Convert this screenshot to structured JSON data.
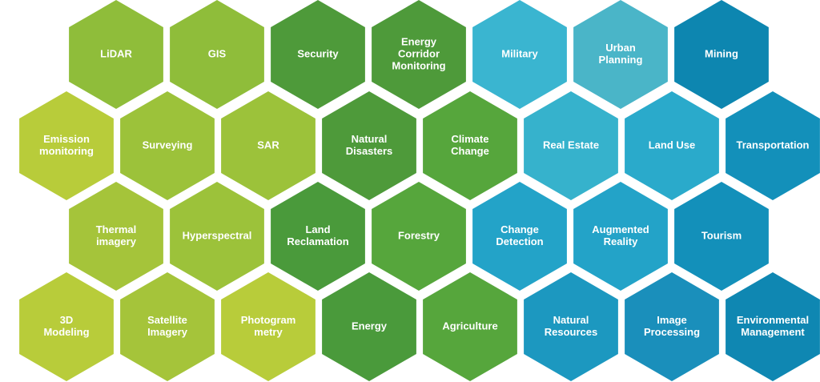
{
  "rows": [
    [
      {
        "lines": [
          "LiDAR"
        ],
        "color": "#8fbd3a"
      },
      {
        "lines": [
          "GIS"
        ],
        "color": "#8fbd3a"
      },
      {
        "lines": [
          "Security"
        ],
        "color": "#4e9a3a"
      },
      {
        "lines": [
          "Energy",
          "Corridor",
          "Monitoring"
        ],
        "color": "#4e9a3a"
      },
      {
        "lines": [
          "Military"
        ],
        "color": "#3ab5d0"
      },
      {
        "lines": [
          "Urban",
          "Planning"
        ],
        "color": "#4ab5c8"
      },
      {
        "lines": [
          "Mining"
        ],
        "color": "#0d86b0"
      }
    ],
    [
      {
        "lines": [
          "Emission",
          "monitoring"
        ],
        "color": "#b8cc3a"
      },
      {
        "lines": [
          "Surveying"
        ],
        "color": "#9cc23a"
      },
      {
        "lines": [
          "SAR"
        ],
        "color": "#9cc23a"
      },
      {
        "lines": [
          "Natural",
          "Disasters"
        ],
        "color": "#4e9a3a"
      },
      {
        "lines": [
          "Climate",
          "Change"
        ],
        "color": "#56a63c"
      },
      {
        "lines": [
          "Real Estate"
        ],
        "color": "#36b2cc"
      },
      {
        "lines": [
          "Land Use"
        ],
        "color": "#2aaacb"
      },
      {
        "lines": [
          "Transportation"
        ],
        "color": "#1390ba"
      }
    ],
    [
      {
        "lines": [
          "Thermal",
          "imagery"
        ],
        "color": "#a5c43a"
      },
      {
        "lines": [
          "Hyperspectral"
        ],
        "color": "#9cc23a"
      },
      {
        "lines": [
          "Land",
          "Reclamation"
        ],
        "color": "#4a9a3b"
      },
      {
        "lines": [
          "Forestry"
        ],
        "color": "#56a63c"
      },
      {
        "lines": [
          "Change",
          "Detection"
        ],
        "color": "#23a3c8"
      },
      {
        "lines": [
          "Augmented",
          "Reality"
        ],
        "color": "#23a3c8"
      },
      {
        "lines": [
          "Tourism"
        ],
        "color": "#1390ba"
      }
    ],
    [
      {
        "lines": [
          "3D",
          "Modeling"
        ],
        "color": "#b8cc3a"
      },
      {
        "lines": [
          "Satellite",
          "Imagery"
        ],
        "color": "#a5c43a"
      },
      {
        "lines": [
          "Photogram",
          "metry"
        ],
        "color": "#b8cc3a"
      },
      {
        "lines": [
          "Energy"
        ],
        "color": "#4a9a3b"
      },
      {
        "lines": [
          "Agriculture"
        ],
        "color": "#56a63c"
      },
      {
        "lines": [
          "Natural",
          "Resources"
        ],
        "color": "#1c98c0"
      },
      {
        "lines": [
          "Image",
          "Processing"
        ],
        "color": "#1a8fbb"
      },
      {
        "lines": [
          "Environmental",
          "Management"
        ],
        "color": "#0f87b2"
      }
    ]
  ]
}
